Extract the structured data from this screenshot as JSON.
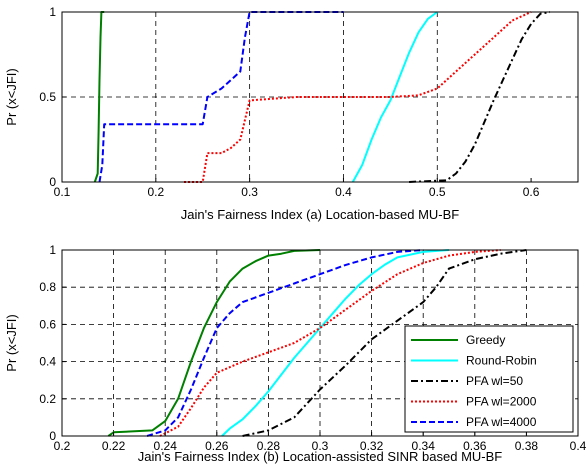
{
  "chart_data": [
    {
      "type": "line",
      "title": "",
      "xlabel": "Jain's Fairness Index (a) Location-based MU-BF",
      "ylabel": "Pr (x<JFI)",
      "xlim": [
        0.1,
        0.65
      ],
      "ylim": [
        0,
        1
      ],
      "xticks": [
        "0.1",
        "0.2",
        "0.3",
        "0.4",
        "0.5",
        "0.6"
      ],
      "yticks": [
        "0",
        "0.5",
        "1"
      ],
      "xtick_values": [
        0.1,
        0.2,
        0.3,
        0.4,
        0.5,
        0.6
      ],
      "ytick_values": [
        0,
        0.5,
        1
      ],
      "grid": true,
      "series": [
        {
          "name": "Greedy",
          "color": "#008000",
          "dash": "solid",
          "x": [
            0.135,
            0.138,
            0.139,
            0.14,
            0.141,
            0.142,
            0.145
          ],
          "y": [
            0,
            0.05,
            0.3,
            0.6,
            0.85,
            1.0,
            1.0
          ]
        },
        {
          "name": "Round-Robin",
          "color": "#00ffff",
          "dash": "solid",
          "x": [
            0.41,
            0.42,
            0.43,
            0.44,
            0.45,
            0.46,
            0.47,
            0.48,
            0.49,
            0.5
          ],
          "y": [
            0,
            0.1,
            0.25,
            0.38,
            0.48,
            0.62,
            0.76,
            0.88,
            0.96,
            1.0
          ]
        },
        {
          "name": "PFA wl=50",
          "color": "#000000",
          "dash": "dashdot",
          "x": [
            0.47,
            0.51,
            0.52,
            0.53,
            0.54,
            0.55,
            0.56,
            0.57,
            0.58,
            0.59,
            0.6,
            0.61,
            0.62
          ],
          "y": [
            0,
            0.01,
            0.05,
            0.12,
            0.22,
            0.35,
            0.48,
            0.6,
            0.72,
            0.84,
            0.93,
            0.99,
            1.0
          ]
        },
        {
          "name": "PFA wl=2000",
          "color": "#ff0000",
          "dash": "dotted",
          "x": [
            0.23,
            0.24,
            0.25,
            0.255,
            0.27,
            0.28,
            0.29,
            0.3,
            0.35,
            0.45,
            0.48,
            0.5,
            0.52,
            0.54,
            0.56,
            0.58,
            0.6
          ],
          "y": [
            0,
            0.0,
            0.0,
            0.17,
            0.17,
            0.2,
            0.25,
            0.48,
            0.5,
            0.5,
            0.51,
            0.55,
            0.65,
            0.75,
            0.85,
            0.95,
            1.0
          ]
        },
        {
          "name": "PFA wl=4000",
          "color": "#0000ff",
          "dash": "dashed",
          "x": [
            0.14,
            0.143,
            0.145,
            0.25,
            0.255,
            0.27,
            0.28,
            0.29,
            0.295,
            0.3,
            0.31,
            0.4
          ],
          "y": [
            0,
            0.1,
            0.34,
            0.34,
            0.5,
            0.55,
            0.6,
            0.65,
            0.85,
            1.0,
            1.0,
            1.0
          ]
        }
      ]
    },
    {
      "type": "line",
      "title": "",
      "xlabel": "Jain's Fairness Index (b) Location-assisted SINR based MU-BF",
      "ylabel": "Pr (x<JFI)",
      "xlim": [
        0.2,
        0.4
      ],
      "ylim": [
        0,
        1
      ],
      "xticks": [
        "0.2",
        "0.22",
        "0.24",
        "0.26",
        "0.28",
        "0.3",
        "0.32",
        "0.34",
        "0.36",
        "0.38",
        "0.4"
      ],
      "yticks": [
        "0",
        "0.2",
        "0.4",
        "0.6",
        "0.8",
        "1"
      ],
      "xtick_values": [
        0.2,
        0.22,
        0.24,
        0.26,
        0.28,
        0.3,
        0.32,
        0.34,
        0.36,
        0.38,
        0.4
      ],
      "ytick_values": [
        0,
        0.2,
        0.4,
        0.6,
        0.8,
        1
      ],
      "grid": true,
      "legend_position": "lower-right",
      "series": [
        {
          "name": "Greedy",
          "color": "#008000",
          "dash": "solid",
          "x": [
            0.218,
            0.22,
            0.235,
            0.24,
            0.245,
            0.25,
            0.255,
            0.26,
            0.265,
            0.27,
            0.275,
            0.28,
            0.285,
            0.29,
            0.3
          ],
          "y": [
            0,
            0.02,
            0.03,
            0.08,
            0.2,
            0.4,
            0.58,
            0.72,
            0.83,
            0.9,
            0.94,
            0.97,
            0.98,
            0.995,
            1.0
          ]
        },
        {
          "name": "Round-Robin",
          "color": "#00ffff",
          "dash": "solid",
          "x": [
            0.262,
            0.265,
            0.27,
            0.275,
            0.28,
            0.285,
            0.29,
            0.295,
            0.3,
            0.305,
            0.31,
            0.315,
            0.32,
            0.325,
            0.33,
            0.34,
            0.35
          ],
          "y": [
            0,
            0.04,
            0.09,
            0.16,
            0.24,
            0.33,
            0.42,
            0.5,
            0.58,
            0.66,
            0.74,
            0.81,
            0.87,
            0.92,
            0.96,
            0.99,
            1.0
          ]
        },
        {
          "name": "PFA wl=50",
          "color": "#000000",
          "dash": "dashdot",
          "x": [
            0.27,
            0.28,
            0.29,
            0.3,
            0.31,
            0.315,
            0.32,
            0.33,
            0.34,
            0.345,
            0.35,
            0.36,
            0.37,
            0.38
          ],
          "y": [
            0,
            0.03,
            0.1,
            0.25,
            0.38,
            0.45,
            0.52,
            0.62,
            0.72,
            0.8,
            0.9,
            0.95,
            0.98,
            1.0
          ]
        },
        {
          "name": "PFA wl=2000",
          "color": "#ff0000",
          "dash": "dotted",
          "x": [
            0.238,
            0.245,
            0.25,
            0.255,
            0.26,
            0.27,
            0.28,
            0.29,
            0.3,
            0.31,
            0.32,
            0.33,
            0.34,
            0.35,
            0.36,
            0.37
          ],
          "y": [
            0,
            0.05,
            0.15,
            0.26,
            0.34,
            0.4,
            0.45,
            0.5,
            0.58,
            0.68,
            0.78,
            0.87,
            0.93,
            0.97,
            0.99,
            1.0
          ]
        },
        {
          "name": "PFA wl=4000",
          "color": "#0000ff",
          "dash": "dashed",
          "x": [
            0.233,
            0.24,
            0.245,
            0.25,
            0.255,
            0.26,
            0.265,
            0.27,
            0.28,
            0.29,
            0.3,
            0.31,
            0.32,
            0.33,
            0.34
          ],
          "y": [
            0,
            0.03,
            0.1,
            0.25,
            0.42,
            0.58,
            0.66,
            0.72,
            0.77,
            0.82,
            0.87,
            0.92,
            0.96,
            0.99,
            1.0
          ]
        }
      ]
    }
  ]
}
